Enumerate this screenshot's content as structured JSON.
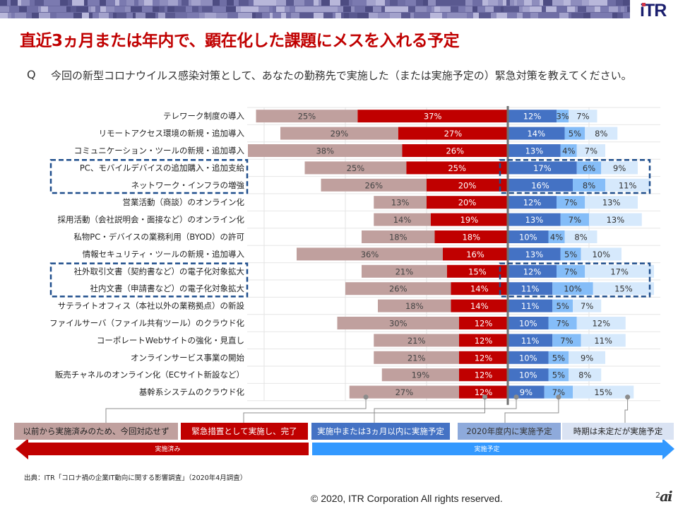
{
  "header": {
    "logo_text": "iTR",
    "title": "直近3ヵ月または年内で、顕在化した課題にメスを入れる予定"
  },
  "question": {
    "mark": "Q",
    "text": "今回の新型コロナウイルス感染対策として、あなたの勤務先で実施した（または実施予定の）緊急対策を教えてください。"
  },
  "colors": {
    "already_done": "#c0a09e",
    "emergency_done": "#c00000",
    "in_progress": "#4472c4",
    "within_fy": "#85bdf8",
    "undecided": "#d6e9fc",
    "highlight_box": "#1f4e8c",
    "arrow_left": "#c00000",
    "arrow_right": "#3399ff",
    "center_axis": "#707070"
  },
  "chart_data": {
    "type": "bar",
    "orientation": "horizontal-diverging",
    "title": "",
    "categories": [
      "テレワーク制度の導入",
      "リモートアクセス環境の新規・追加導入",
      "コミュニケーション・ツールの新規・追加導入",
      "PC、モバイルデバイスの追加購入・追加支給",
      "ネットワーク・インフラの増強",
      "営業活動（商談）のオンライン化",
      "採用活動（会社説明会・面接など）のオンライン化",
      "私物PC・デバイスの業務利用（BYOD）の許可",
      "情報セキュリティ・ツールの新規・追加導入",
      "社外取引文書（契約書など）の電子化対象拡大",
      "社内文書（申請書など）の電子化対象拡大",
      "サテライトオフィス（本社以外の業務拠点）の新設",
      "ファイルサーバ（ファイル共有ツール）のクラウド化",
      "コーポレートWebサイトの強化・見直し",
      "オンラインサービス事業の開始",
      "販売チャネルのオンライン化（ECサイト新設など）",
      "基幹系システムのクラウド化"
    ],
    "series": [
      {
        "name": "以前から実施済みのため、今回対応せず",
        "side": "left",
        "values": [
          25,
          29,
          38,
          25,
          26,
          13,
          14,
          18,
          36,
          21,
          26,
          18,
          30,
          21,
          21,
          19,
          27
        ]
      },
      {
        "name": "緊急措置として実施し、完了",
        "side": "left",
        "values": [
          37,
          27,
          26,
          25,
          20,
          20,
          19,
          18,
          16,
          15,
          14,
          14,
          12,
          12,
          12,
          12,
          12
        ]
      },
      {
        "name": "実施中または3ヵ月以内に実施予定",
        "side": "right",
        "values": [
          12,
          14,
          13,
          17,
          16,
          12,
          13,
          10,
          13,
          12,
          11,
          11,
          10,
          11,
          10,
          10,
          9
        ]
      },
      {
        "name": "2020年度内に実施予定",
        "side": "right",
        "values": [
          3,
          5,
          4,
          6,
          8,
          7,
          7,
          4,
          5,
          7,
          10,
          5,
          7,
          7,
          5,
          5,
          7
        ]
      },
      {
        "name": "時期は未定だが実施予定",
        "side": "right",
        "values": [
          7,
          8,
          7,
          9,
          11,
          13,
          13,
          8,
          10,
          17,
          15,
          7,
          12,
          11,
          9,
          8,
          15
        ]
      }
    ],
    "unit": "%",
    "xlim": [
      -65,
      40
    ],
    "gridlines_at": [
      -60,
      -40,
      -20,
      20
    ],
    "grid": true,
    "highlighted_groups": [
      [
        3,
        4
      ],
      [
        9,
        10
      ]
    ],
    "legend_position": "bottom",
    "arrow_labels": {
      "left": "実施済み",
      "right": "実施予定"
    }
  },
  "footer": {
    "source": "出典：ITR「コロナ禍の企業IT動向に関する影響調査」（2020年4月調査）",
    "copyright": "© 2020, ITR Corporation All rights reserved.",
    "page_number": "2",
    "watermark": "ai"
  }
}
